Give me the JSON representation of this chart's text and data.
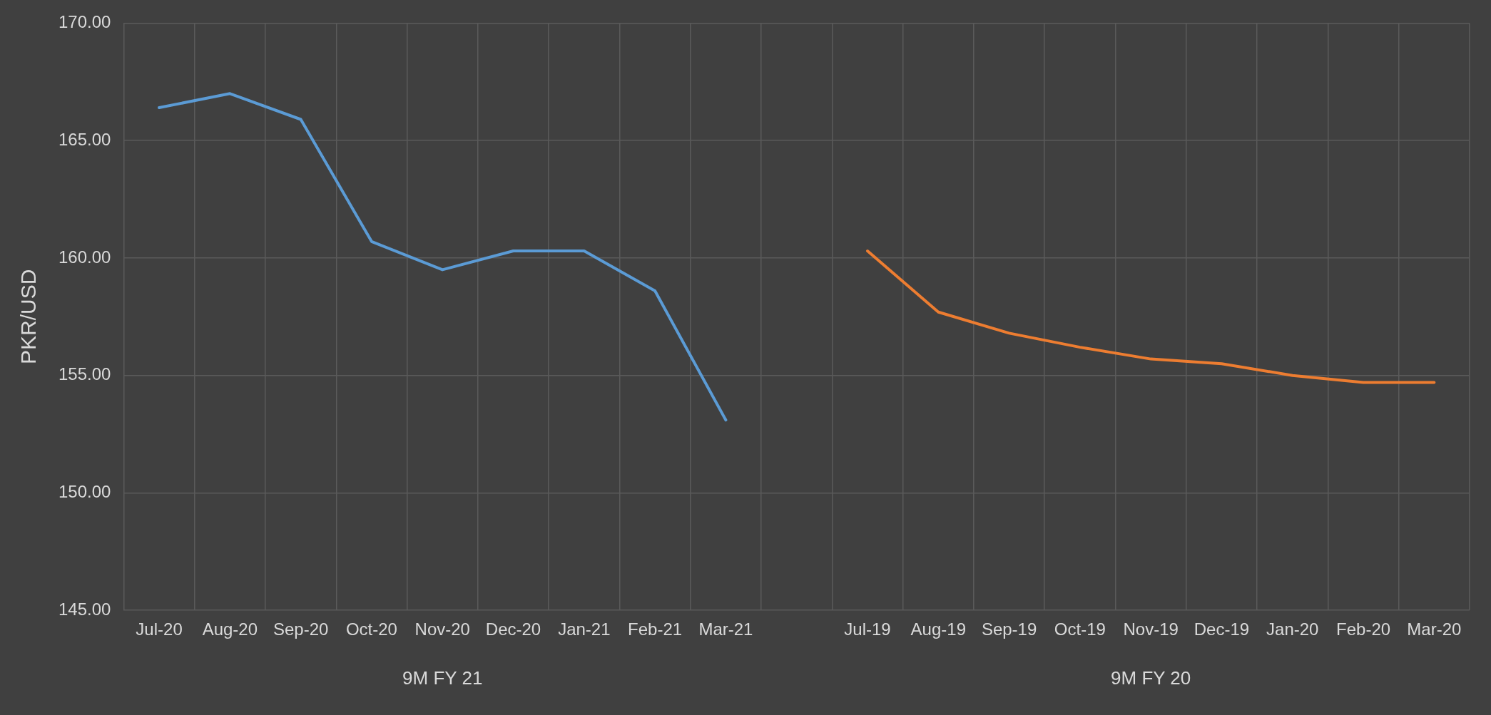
{
  "chart_data": {
    "type": "line",
    "ylabel": "PKR/USD",
    "categories": [
      "Jul-20",
      "Aug-20",
      "Sep-20",
      "Oct-20",
      "Nov-20",
      "Dec-20",
      "Jan-21",
      "Feb-21",
      "Mar-21",
      null,
      "Jul-19",
      "Aug-19",
      "Sep-19",
      "Oct-19",
      "Nov-19",
      "Dec-19",
      "Jan-20",
      "Feb-20",
      "Mar-20"
    ],
    "series": [
      {
        "color": "#5b9bd5",
        "values": [
          166.4,
          167.0,
          165.9,
          160.7,
          159.5,
          160.3,
          160.3,
          158.6,
          153.1,
          null,
          null,
          null,
          null,
          null,
          null,
          null,
          null,
          null,
          null
        ]
      },
      {
        "color": "#ed7d31",
        "values": [
          null,
          null,
          null,
          null,
          null,
          null,
          null,
          null,
          null,
          null,
          160.3,
          157.7,
          156.8,
          156.2,
          155.7,
          155.5,
          155.0,
          154.7,
          154.7
        ]
      }
    ],
    "ylim": [
      145,
      170
    ],
    "yticks": [
      {
        "value": 145,
        "label": "145.00"
      },
      {
        "value": 150,
        "label": "150.00"
      },
      {
        "value": 155,
        "label": "155.00"
      },
      {
        "value": 160,
        "label": "160.00"
      },
      {
        "value": 165,
        "label": "165.00"
      },
      {
        "value": 170,
        "label": "170.00"
      }
    ],
    "annotations": [
      "9M FY 21",
      "9M FY 20"
    ],
    "grid": true,
    "legend": false,
    "marker": "none",
    "line_style": "solid"
  }
}
